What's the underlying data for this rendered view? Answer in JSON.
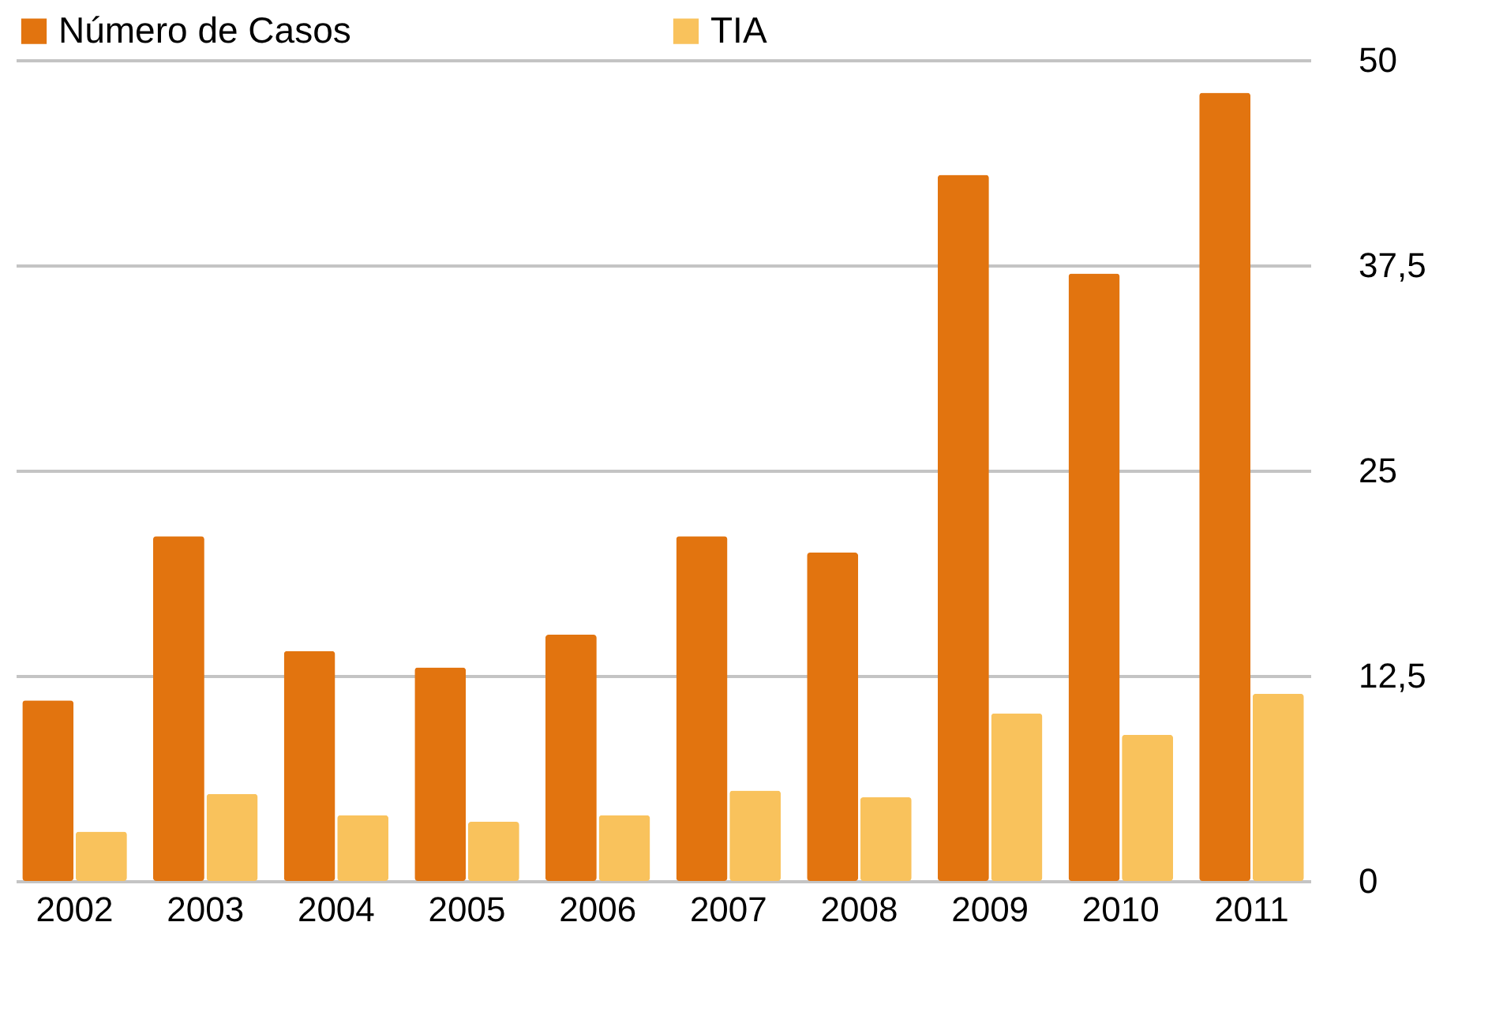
{
  "chart_data": {
    "type": "bar",
    "categories": [
      "2002",
      "2003",
      "2004",
      "2005",
      "2006",
      "2007",
      "2008",
      "2009",
      "2010",
      "2011"
    ],
    "series": [
      {
        "name": "Número de Casos",
        "color": "#e2740f",
        "values": [
          11,
          21,
          14,
          13,
          15,
          21,
          20,
          43,
          37,
          48
        ]
      },
      {
        "name": "TIA",
        "color": "#f9c25c",
        "values": [
          3,
          5.3,
          4,
          3.6,
          4,
          5.5,
          5.1,
          10.2,
          8.9,
          11.4
        ]
      }
    ],
    "ylim": [
      0,
      50
    ],
    "yticks": [
      0,
      {
        "value": 12.5,
        "label": "12,5"
      },
      25,
      {
        "value": 37.5,
        "label": "37,5"
      },
      50
    ],
    "grid": "y",
    "legend": "top"
  }
}
